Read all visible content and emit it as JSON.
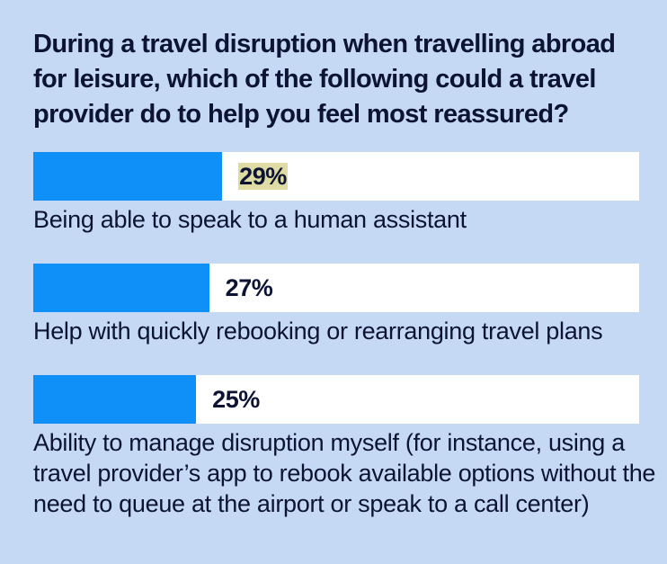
{
  "chart_data": {
    "type": "bar",
    "orientation": "horizontal",
    "title": "During a travel disruption when travelling abroad for leisure, which of the following could a travel provider do to help you feel most reassured?",
    "categories": [
      "Being able to speak to a human assistant",
      "Help with quickly rebooking or rearranging travel plans",
      "Ability to manage disruption myself (for instance, using a travel provider’s app to rebook available options without the need to queue at the airport or speak to a call center)"
    ],
    "values": [
      29,
      27,
      25
    ],
    "value_labels": [
      "29%",
      "27%",
      "25%"
    ],
    "unit": "%",
    "xlim": [
      0,
      93
    ],
    "grid": false,
    "colors": {
      "bar": "#0f8ff8",
      "track": "#ffffff",
      "background": "#c5d9f5",
      "highlight": "#dedca2"
    }
  }
}
